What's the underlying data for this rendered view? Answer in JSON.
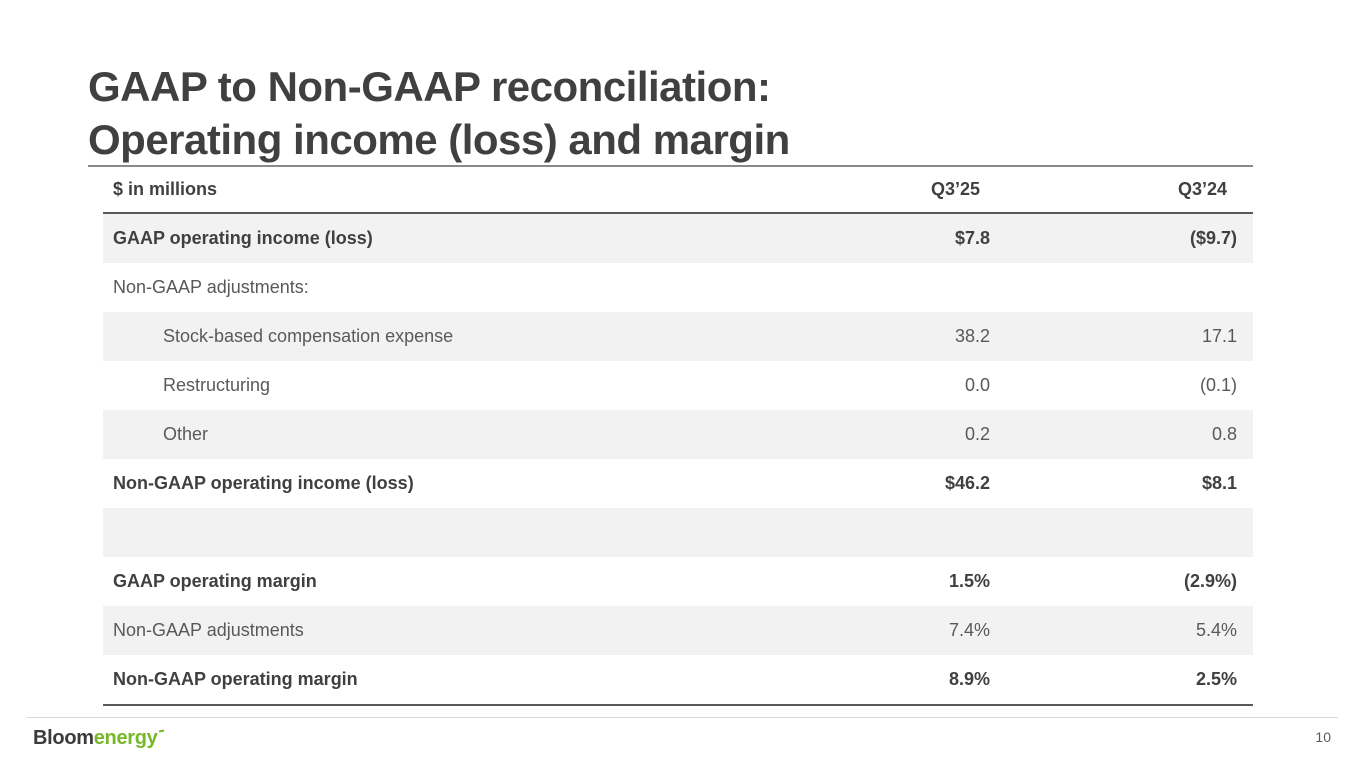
{
  "slide": {
    "title_line1": "GAAP to Non-GAAP reconciliation:",
    "title_line2": "Operating income (loss) and margin",
    "page_number": "10"
  },
  "logo": {
    "part_dark": "Bloom",
    "part_green": "energy"
  },
  "table": {
    "header": {
      "label": "$ in millions",
      "col1": "Q3’25",
      "col2": "Q3’24"
    },
    "rows": [
      {
        "label": "GAAP operating income (loss)",
        "q325": "$7.8",
        "q324": "($9.7)"
      },
      {
        "label": "Non-GAAP adjustments:",
        "q325": "",
        "q324": ""
      },
      {
        "label": "Stock-based compensation expense",
        "q325": "38.2",
        "q324": "17.1"
      },
      {
        "label": "Restructuring",
        "q325": "0.0",
        "q324": "(0.1)"
      },
      {
        "label": "Other",
        "q325": "0.2",
        "q324": "0.8"
      },
      {
        "label": "Non-GAAP operating income (loss)",
        "q325": "$46.2",
        "q324": "$8.1"
      },
      {
        "label": "",
        "q325": "",
        "q324": ""
      },
      {
        "label": "GAAP operating margin",
        "q325": "1.5%",
        "q324": "(2.9%)"
      },
      {
        "label": "Non-GAAP adjustments",
        "q325": "7.4%",
        "q324": "5.4%"
      },
      {
        "label": "Non-GAAP operating margin",
        "q325": "8.9%",
        "q324": "2.5%"
      }
    ]
  },
  "colors": {
    "title_text": "#404040",
    "body_text": "#595959",
    "bold_text": "#404040",
    "stripe": "#f2f2f2",
    "rule_dark": "#595959",
    "rule_mid": "#8a8a8a",
    "rule_light": "#d9d9d9",
    "logo_dark": "#3b3b3c",
    "logo_green": "#76b82a",
    "page_num": "#595959"
  }
}
